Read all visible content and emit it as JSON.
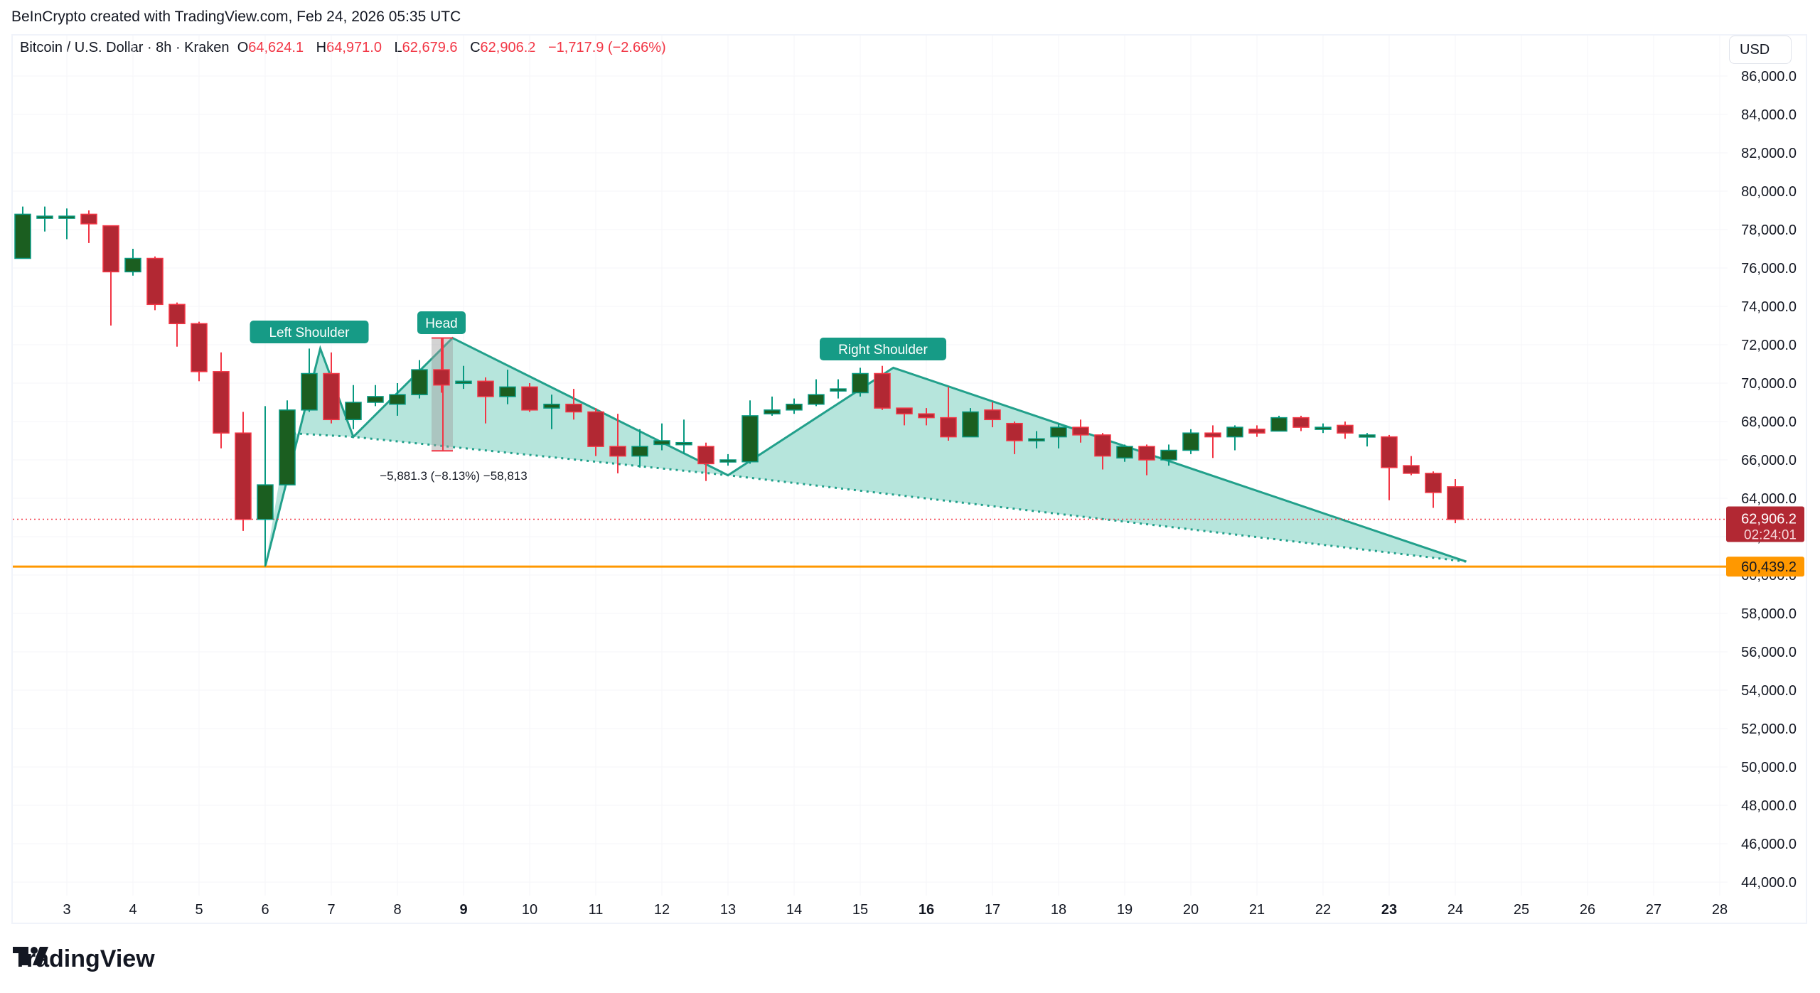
{
  "credit": "BeInCrypto created with TradingView.com, Feb 24, 2026 05:35 UTC",
  "legend": {
    "symbol": "Bitcoin / U.S. Dollar · 8h · Kraken",
    "o_label": "O",
    "o": "64,624.1",
    "h_label": "H",
    "h": "64,971.0",
    "l_label": "L",
    "l": "62,679.6",
    "c_label": "C",
    "c": "62,906.2",
    "change": "−1,717.9 (−2.66%)"
  },
  "currency": "USD",
  "price_labels": {
    "last_price": "62,906.2",
    "countdown": "02:24:01",
    "support": "60,439.2"
  },
  "annotations": {
    "left_shoulder": "Left Shoulder",
    "head": "Head",
    "right_shoulder": "Right Shoulder",
    "measure": "−5,881.3 (−8.13%) −58,813"
  },
  "logo": "TradingView",
  "colors": {
    "up": "#1b5e20",
    "up_border": "#089981",
    "down": "#b22833",
    "down_border": "#f23645",
    "pattern_line": "#22a08b",
    "pattern_fill": "#b2e4da",
    "support": "#ff9800",
    "last_price": "#b22833"
  },
  "chart_data": {
    "type": "candlestick",
    "title": "Bitcoin / U.S. Dollar · 8h · Kraken",
    "xlabel": "",
    "ylabel": "USD",
    "ylim": [
      43000,
      87000
    ],
    "y_ticks": [
      "86,000.0",
      "84,000.0",
      "82,000.0",
      "80,000.0",
      "78,000.0",
      "76,000.0",
      "74,000.0",
      "72,000.0",
      "70,000.0",
      "68,000.0",
      "66,000.0",
      "64,000.0",
      "62,000.0",
      "60,000.0",
      "58,000.0",
      "56,000.0",
      "54,000.0",
      "52,000.0",
      "50,000.0",
      "48,000.0",
      "46,000.0",
      "44,000.0"
    ],
    "x_ticks": [
      {
        "label": "3",
        "bold": false
      },
      {
        "label": "4",
        "bold": false
      },
      {
        "label": "5",
        "bold": false
      },
      {
        "label": "6",
        "bold": false
      },
      {
        "label": "7",
        "bold": false
      },
      {
        "label": "8",
        "bold": false
      },
      {
        "label": "9",
        "bold": true
      },
      {
        "label": "10",
        "bold": false
      },
      {
        "label": "11",
        "bold": false
      },
      {
        "label": "12",
        "bold": false
      },
      {
        "label": "13",
        "bold": false
      },
      {
        "label": "14",
        "bold": false
      },
      {
        "label": "15",
        "bold": false
      },
      {
        "label": "16",
        "bold": true
      },
      {
        "label": "17",
        "bold": false
      },
      {
        "label": "18",
        "bold": false
      },
      {
        "label": "19",
        "bold": false
      },
      {
        "label": "20",
        "bold": false
      },
      {
        "label": "21",
        "bold": false
      },
      {
        "label": "22",
        "bold": false
      },
      {
        "label": "23",
        "bold": true
      },
      {
        "label": "24",
        "bold": false
      },
      {
        "label": "25",
        "bold": false
      },
      {
        "label": "26",
        "bold": false
      },
      {
        "label": "27",
        "bold": false
      },
      {
        "label": "28",
        "bold": false
      }
    ],
    "candles": [
      [
        76500,
        78800,
        79200,
        76500
      ],
      [
        78700,
        78700,
        79200,
        77900
      ],
      [
        78700,
        78700,
        79100,
        77500
      ],
      [
        78800,
        78300,
        79000,
        77300
      ],
      [
        78200,
        75800,
        78200,
        73000
      ],
      [
        75800,
        76500,
        77000,
        75600
      ],
      [
        76500,
        74100,
        76600,
        73800
      ],
      [
        74100,
        73100,
        74200,
        71900
      ],
      [
        73100,
        70600,
        73200,
        70100
      ],
      [
        70600,
        67400,
        71600,
        66600
      ],
      [
        67400,
        62900,
        68500,
        62300
      ],
      [
        62900,
        64700,
        68800,
        60440
      ],
      [
        64700,
        68600,
        69100,
        64700
      ],
      [
        68600,
        70500,
        71800,
        68500
      ],
      [
        70500,
        68100,
        71600,
        67900
      ],
      [
        68100,
        69000,
        69900,
        67600
      ],
      [
        69000,
        69300,
        69900,
        68800
      ],
      [
        68900,
        69400,
        70000,
        68300
      ],
      [
        69400,
        70700,
        71200,
        69200
      ],
      [
        70700,
        69900,
        72350,
        69500
      ],
      [
        70100,
        70100,
        70900,
        69700
      ],
      [
        70100,
        69300,
        70300,
        67900
      ],
      [
        69300,
        69800,
        70700,
        68900
      ],
      [
        69800,
        68600,
        70000,
        68500
      ],
      [
        68700,
        68900,
        69400,
        67600
      ],
      [
        68900,
        68500,
        69700,
        68100
      ],
      [
        68500,
        66700,
        68700,
        66200
      ],
      [
        66700,
        66200,
        68400,
        65300
      ],
      [
        66200,
        66700,
        67600,
        65600
      ],
      [
        66800,
        67000,
        67900,
        66500
      ],
      [
        66900,
        66900,
        68100,
        66300
      ],
      [
        66700,
        65800,
        66900,
        64900
      ],
      [
        66000,
        66000,
        66300,
        65700
      ],
      [
        65900,
        68300,
        69100,
        65800
      ],
      [
        68400,
        68600,
        69300,
        68300
      ],
      [
        68600,
        68900,
        69200,
        68400
      ],
      [
        68900,
        69400,
        70200,
        68800
      ],
      [
        69700,
        69700,
        70200,
        69200
      ],
      [
        69500,
        70500,
        70800,
        69300
      ],
      [
        70500,
        68700,
        70900,
        68600
      ],
      [
        68700,
        68400,
        68700,
        67800
      ],
      [
        68400,
        68200,
        68700,
        67800
      ],
      [
        68200,
        67200,
        69800,
        67000
      ],
      [
        67200,
        68500,
        68700,
        67200
      ],
      [
        68600,
        68100,
        69000,
        67700
      ],
      [
        67900,
        67000,
        68000,
        66300
      ],
      [
        67100,
        67100,
        67500,
        66600
      ],
      [
        67200,
        67700,
        67900,
        66600
      ],
      [
        67700,
        67300,
        68100,
        66900
      ],
      [
        67300,
        66200,
        67400,
        65500
      ],
      [
        66100,
        66700,
        66800,
        65900
      ],
      [
        66700,
        66000,
        66800,
        65200
      ],
      [
        66000,
        66500,
        66800,
        65700
      ],
      [
        66500,
        67400,
        67600,
        66300
      ],
      [
        67400,
        67200,
        67800,
        66100
      ],
      [
        67200,
        67700,
        67800,
        66500
      ],
      [
        67600,
        67400,
        67800,
        67200
      ],
      [
        67500,
        68200,
        68300,
        67500
      ],
      [
        68200,
        67700,
        68300,
        67500
      ],
      [
        67700,
        67700,
        67900,
        67400
      ],
      [
        67800,
        67400,
        68000,
        67100
      ],
      [
        67300,
        67300,
        67400,
        66700
      ],
      [
        67200,
        65600,
        67300,
        63900
      ],
      [
        65700,
        65300,
        66200,
        65200
      ],
      [
        65300,
        64300,
        65400,
        63500
      ],
      [
        64600,
        62900,
        65000,
        62700
      ]
    ],
    "pattern": {
      "neckline_points": [
        [
          12,
          67400
        ],
        [
          15,
          67200
        ],
        [
          32,
          65200
        ],
        [
          65.5,
          60700
        ]
      ],
      "upper_points": [
        [
          11,
          60440
        ],
        [
          13.5,
          71800
        ],
        [
          15,
          67200
        ],
        [
          19.5,
          72350
        ],
        [
          32,
          65200
        ],
        [
          39.5,
          70800
        ],
        [
          65.5,
          60700
        ]
      ]
    },
    "support_level": 60439.2,
    "last_price": 62906.2
  }
}
